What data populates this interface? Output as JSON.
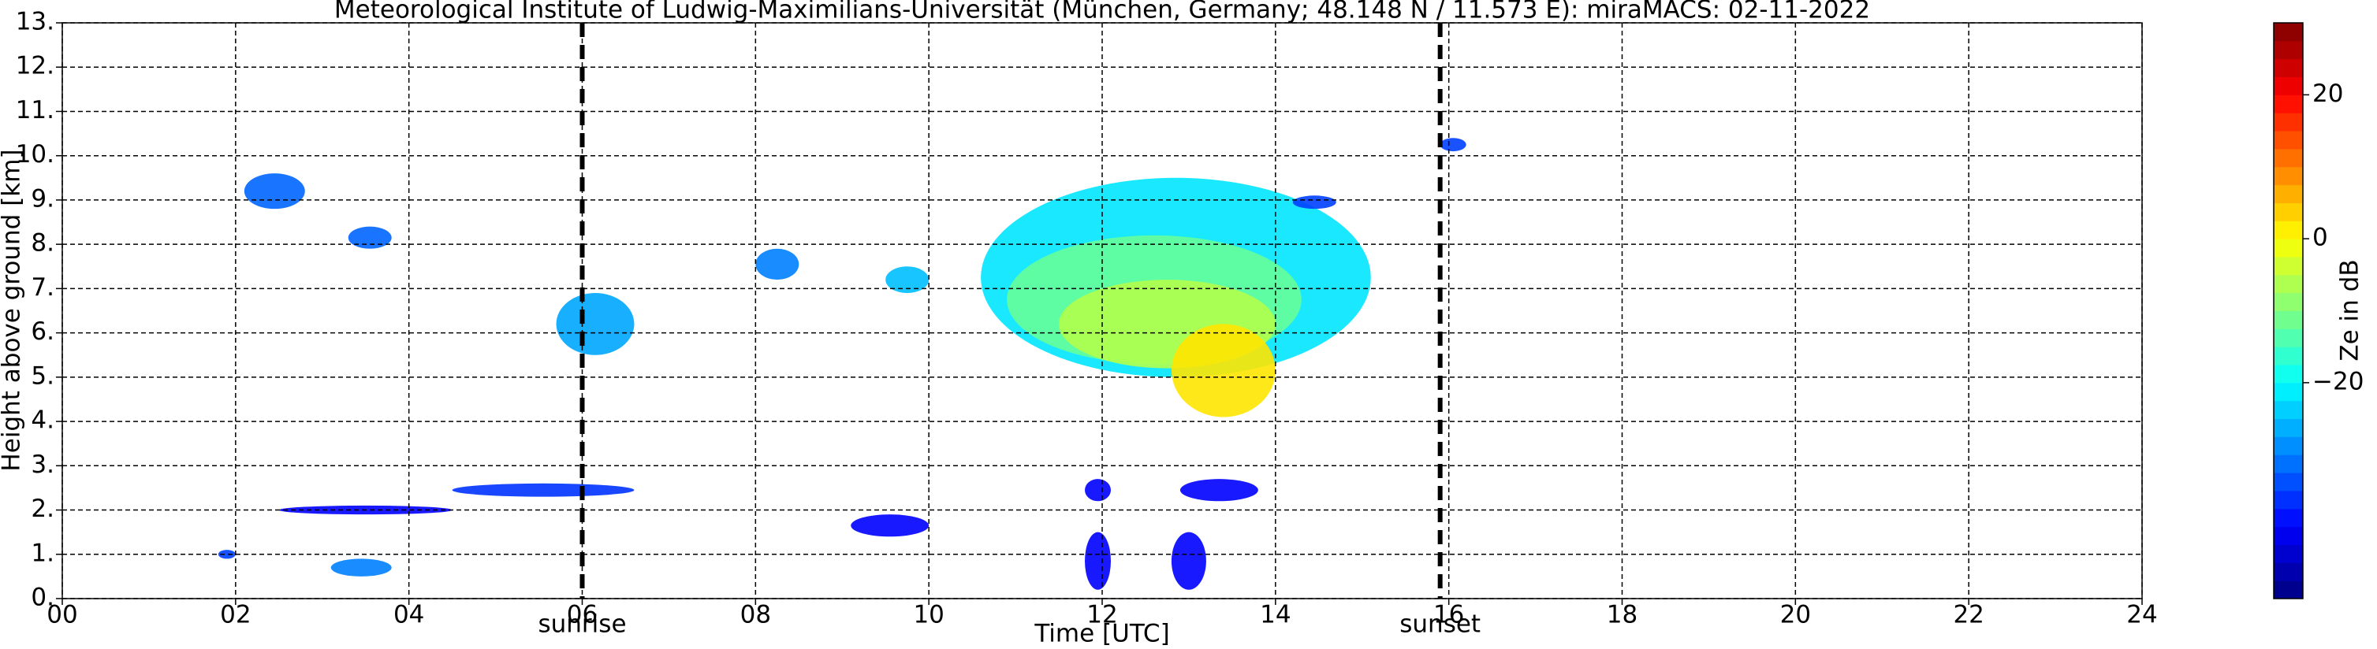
{
  "chart_data": {
    "type": "heatmap",
    "title": "Meteorological Institute of Ludwig-Maximilians-Universität (München, Germany; 48.148 N / 11.573 E):    miraMACS: 02-11-2022",
    "xlabel": "Time [UTC]",
    "ylabel": "Height above ground [km]",
    "xlim": [
      0,
      24
    ],
    "xticks": [
      {
        "value": 0,
        "label": "00"
      },
      {
        "value": 2,
        "label": "02"
      },
      {
        "value": 4,
        "label": "04"
      },
      {
        "value": 6,
        "label": "06"
      },
      {
        "value": 8,
        "label": "08"
      },
      {
        "value": 10,
        "label": "10"
      },
      {
        "value": 12,
        "label": "12"
      },
      {
        "value": 14,
        "label": "14"
      },
      {
        "value": 16,
        "label": "16"
      },
      {
        "value": 18,
        "label": "18"
      },
      {
        "value": 20,
        "label": "20"
      },
      {
        "value": 22,
        "label": "22"
      },
      {
        "value": 24,
        "label": "24"
      }
    ],
    "ylim": [
      0,
      13
    ],
    "yticks": [
      {
        "value": 0,
        "label": "0."
      },
      {
        "value": 1,
        "label": "1."
      },
      {
        "value": 2,
        "label": "2."
      },
      {
        "value": 3,
        "label": "3."
      },
      {
        "value": 4,
        "label": "4."
      },
      {
        "value": 5,
        "label": "5."
      },
      {
        "value": 6,
        "label": "6."
      },
      {
        "value": 7,
        "label": "7."
      },
      {
        "value": 8,
        "label": "8."
      },
      {
        "value": 9,
        "label": "9."
      },
      {
        "value": 10,
        "label": "10."
      },
      {
        "value": 11,
        "label": "11."
      },
      {
        "value": 12,
        "label": "12."
      },
      {
        "value": 13,
        "label": "13."
      }
    ],
    "grid": true,
    "markers": [
      {
        "label": "sunrise",
        "x": 6.0
      },
      {
        "label": "sunset",
        "x": 15.9
      }
    ],
    "colormap": "jet",
    "colorbar": {
      "label": "Ze in dB",
      "clim": [
        -50,
        30
      ],
      "ticks": [
        {
          "value": -20,
          "label": "−20"
        },
        0,
        20
      ]
    },
    "echoes": [
      {
        "time": [
          10.6,
          15.1
        ],
        "height": [
          5.0,
          9.5
        ],
        "ze": -22
      },
      {
        "time": [
          10.9,
          14.3
        ],
        "height": [
          5.3,
          8.2
        ],
        "ze": -12
      },
      {
        "time": [
          11.5,
          14.0
        ],
        "height": [
          5.2,
          7.2
        ],
        "ze": -6
      },
      {
        "time": [
          12.8,
          14.0
        ],
        "height": [
          4.1,
          6.2
        ],
        "ze": 2
      },
      {
        "time": [
          14.2,
          14.7
        ],
        "height": [
          8.8,
          9.1
        ],
        "ze": -35
      },
      {
        "time": [
          2.1,
          2.8
        ],
        "height": [
          8.8,
          9.6
        ],
        "ze": -32
      },
      {
        "time": [
          3.3,
          3.8
        ],
        "height": [
          7.9,
          8.4
        ],
        "ze": -32
      },
      {
        "time": [
          5.7,
          6.6
        ],
        "height": [
          5.5,
          6.9
        ],
        "ze": -27
      },
      {
        "time": [
          15.9,
          16.2
        ],
        "height": [
          10.1,
          10.4
        ],
        "ze": -35
      },
      {
        "time": [
          9.5,
          10.0
        ],
        "height": [
          6.9,
          7.5
        ],
        "ze": -25
      },
      {
        "time": [
          8.0,
          8.5
        ],
        "height": [
          7.2,
          7.9
        ],
        "ze": -30
      },
      {
        "time": [
          4.5,
          6.6
        ],
        "height": [
          2.3,
          2.6
        ],
        "ze": -36
      },
      {
        "time": [
          2.5,
          4.5
        ],
        "height": [
          1.9,
          2.1
        ],
        "ze": -40
      },
      {
        "time": [
          3.1,
          3.8
        ],
        "height": [
          0.5,
          0.9
        ],
        "ze": -30
      },
      {
        "time": [
          1.8,
          2.0
        ],
        "height": [
          0.9,
          1.1
        ],
        "ze": -35
      },
      {
        "time": [
          11.8,
          12.1
        ],
        "height": [
          0.2,
          1.5
        ],
        "ze": -40
      },
      {
        "time": [
          11.8,
          12.1
        ],
        "height": [
          2.2,
          2.7
        ],
        "ze": -40
      },
      {
        "time": [
          12.9,
          13.8
        ],
        "height": [
          2.2,
          2.7
        ],
        "ze": -40
      },
      {
        "time": [
          12.8,
          13.2
        ],
        "height": [
          0.2,
          1.5
        ],
        "ze": -40
      },
      {
        "time": [
          9.1,
          10.0
        ],
        "height": [
          1.4,
          1.9
        ],
        "ze": -40
      }
    ]
  }
}
